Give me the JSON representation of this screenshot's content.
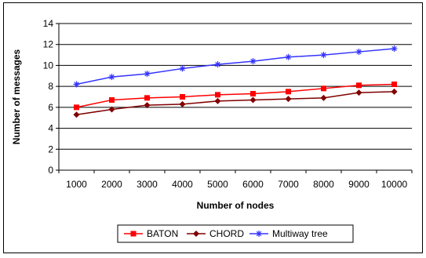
{
  "chart_data": {
    "type": "line",
    "title": "",
    "xlabel": "Number of nodes",
    "ylabel": "Number of messages",
    "categories": [
      "1000",
      "2000",
      "3000",
      "4000",
      "5000",
      "6000",
      "7000",
      "8000",
      "9000",
      "10000"
    ],
    "y_ticks": [
      "0",
      "2",
      "4",
      "6",
      "8",
      "10",
      "12",
      "14"
    ],
    "ylim": [
      0,
      14
    ],
    "grid": "horizontal major",
    "legend_position": "bottom",
    "series": [
      {
        "name": "BATON",
        "color": "#ff0000",
        "marker": "square",
        "values": [
          6.0,
          6.7,
          6.9,
          7.0,
          7.2,
          7.3,
          7.5,
          7.8,
          8.1,
          8.2
        ]
      },
      {
        "name": "CHORD",
        "color": "#800000",
        "marker": "diamond",
        "values": [
          5.3,
          5.8,
          6.2,
          6.3,
          6.6,
          6.7,
          6.8,
          6.9,
          7.4,
          7.5
        ]
      },
      {
        "name": "Multiway tree",
        "color": "#3333ff",
        "marker": "star",
        "values": [
          8.2,
          8.9,
          9.2,
          9.7,
          10.1,
          10.4,
          10.8,
          11.0,
          11.3,
          11.6
        ]
      }
    ]
  }
}
